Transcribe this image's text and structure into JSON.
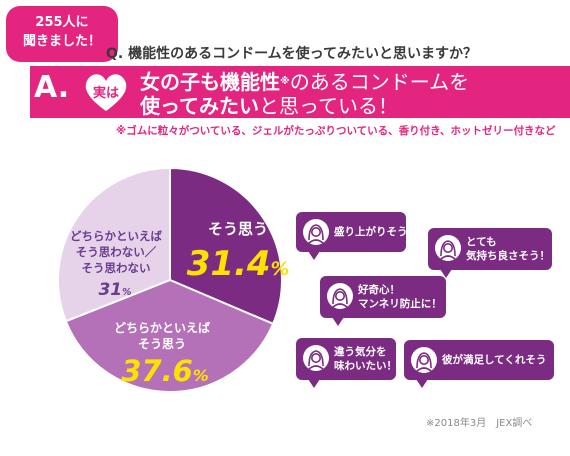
{
  "survey": {
    "badge": [
      "255人に",
      "聞きました！"
    ],
    "question": "Q. 機能性のあるコンドームを使ってみたいと思いますか？",
    "credit": "※2018年3月　JEX調べ"
  },
  "answer": {
    "letter": "A.",
    "heart_label": "実は",
    "line1_bold": "女の子も機能性",
    "line1_sup": "※",
    "line1_rest": "のあるコンドームを",
    "line2_bold": "使ってみたい",
    "line2_rest": "と思っている！",
    "footnote": "※ゴムに粒々がついている、ジェルがたっぷりついている、香り付き、ホットゼリー付きなど"
  },
  "colors": {
    "accent": "#e4257f",
    "yes": "#7b2c82",
    "somewhat_yes": "#b571b8",
    "no": "#e6d3ea",
    "value": "#ffe100"
  },
  "chart_data": {
    "type": "pie",
    "slices": [
      {
        "key": "yes",
        "label": "そう思う",
        "value": 31.4,
        "display": "31.4",
        "unit": "%"
      },
      {
        "key": "somewhat_yes",
        "label_lines": [
          "どちらかといえば",
          "そう思う"
        ],
        "value": 37.6,
        "display": "37.6",
        "unit": "%"
      },
      {
        "key": "no",
        "label_lines": [
          "どちらかといえば",
          "そう思わない／",
          "そう思わない"
        ],
        "value": 31,
        "display": "31",
        "unit": "%"
      }
    ]
  },
  "reasons": [
    {
      "id": "excited",
      "text": [
        "盛り上がりそう！"
      ],
      "icon": "woman-avatar-icon"
    },
    {
      "id": "feels-good",
      "text": [
        "とても",
        "気持ち良さそう！"
      ],
      "icon": "woman-avatar-icon"
    },
    {
      "id": "curious",
      "text": [
        "好奇心！",
        "マンネリ防止に！"
      ],
      "icon": "woman-avatar-icon"
    },
    {
      "id": "different-mood",
      "text": [
        "違う気分を",
        "味わいたい！"
      ],
      "icon": "woman-avatar-icon"
    },
    {
      "id": "partner-satisfied",
      "text": [
        "彼が満足してくれそう"
      ],
      "icon": "woman-avatar-icon"
    }
  ]
}
